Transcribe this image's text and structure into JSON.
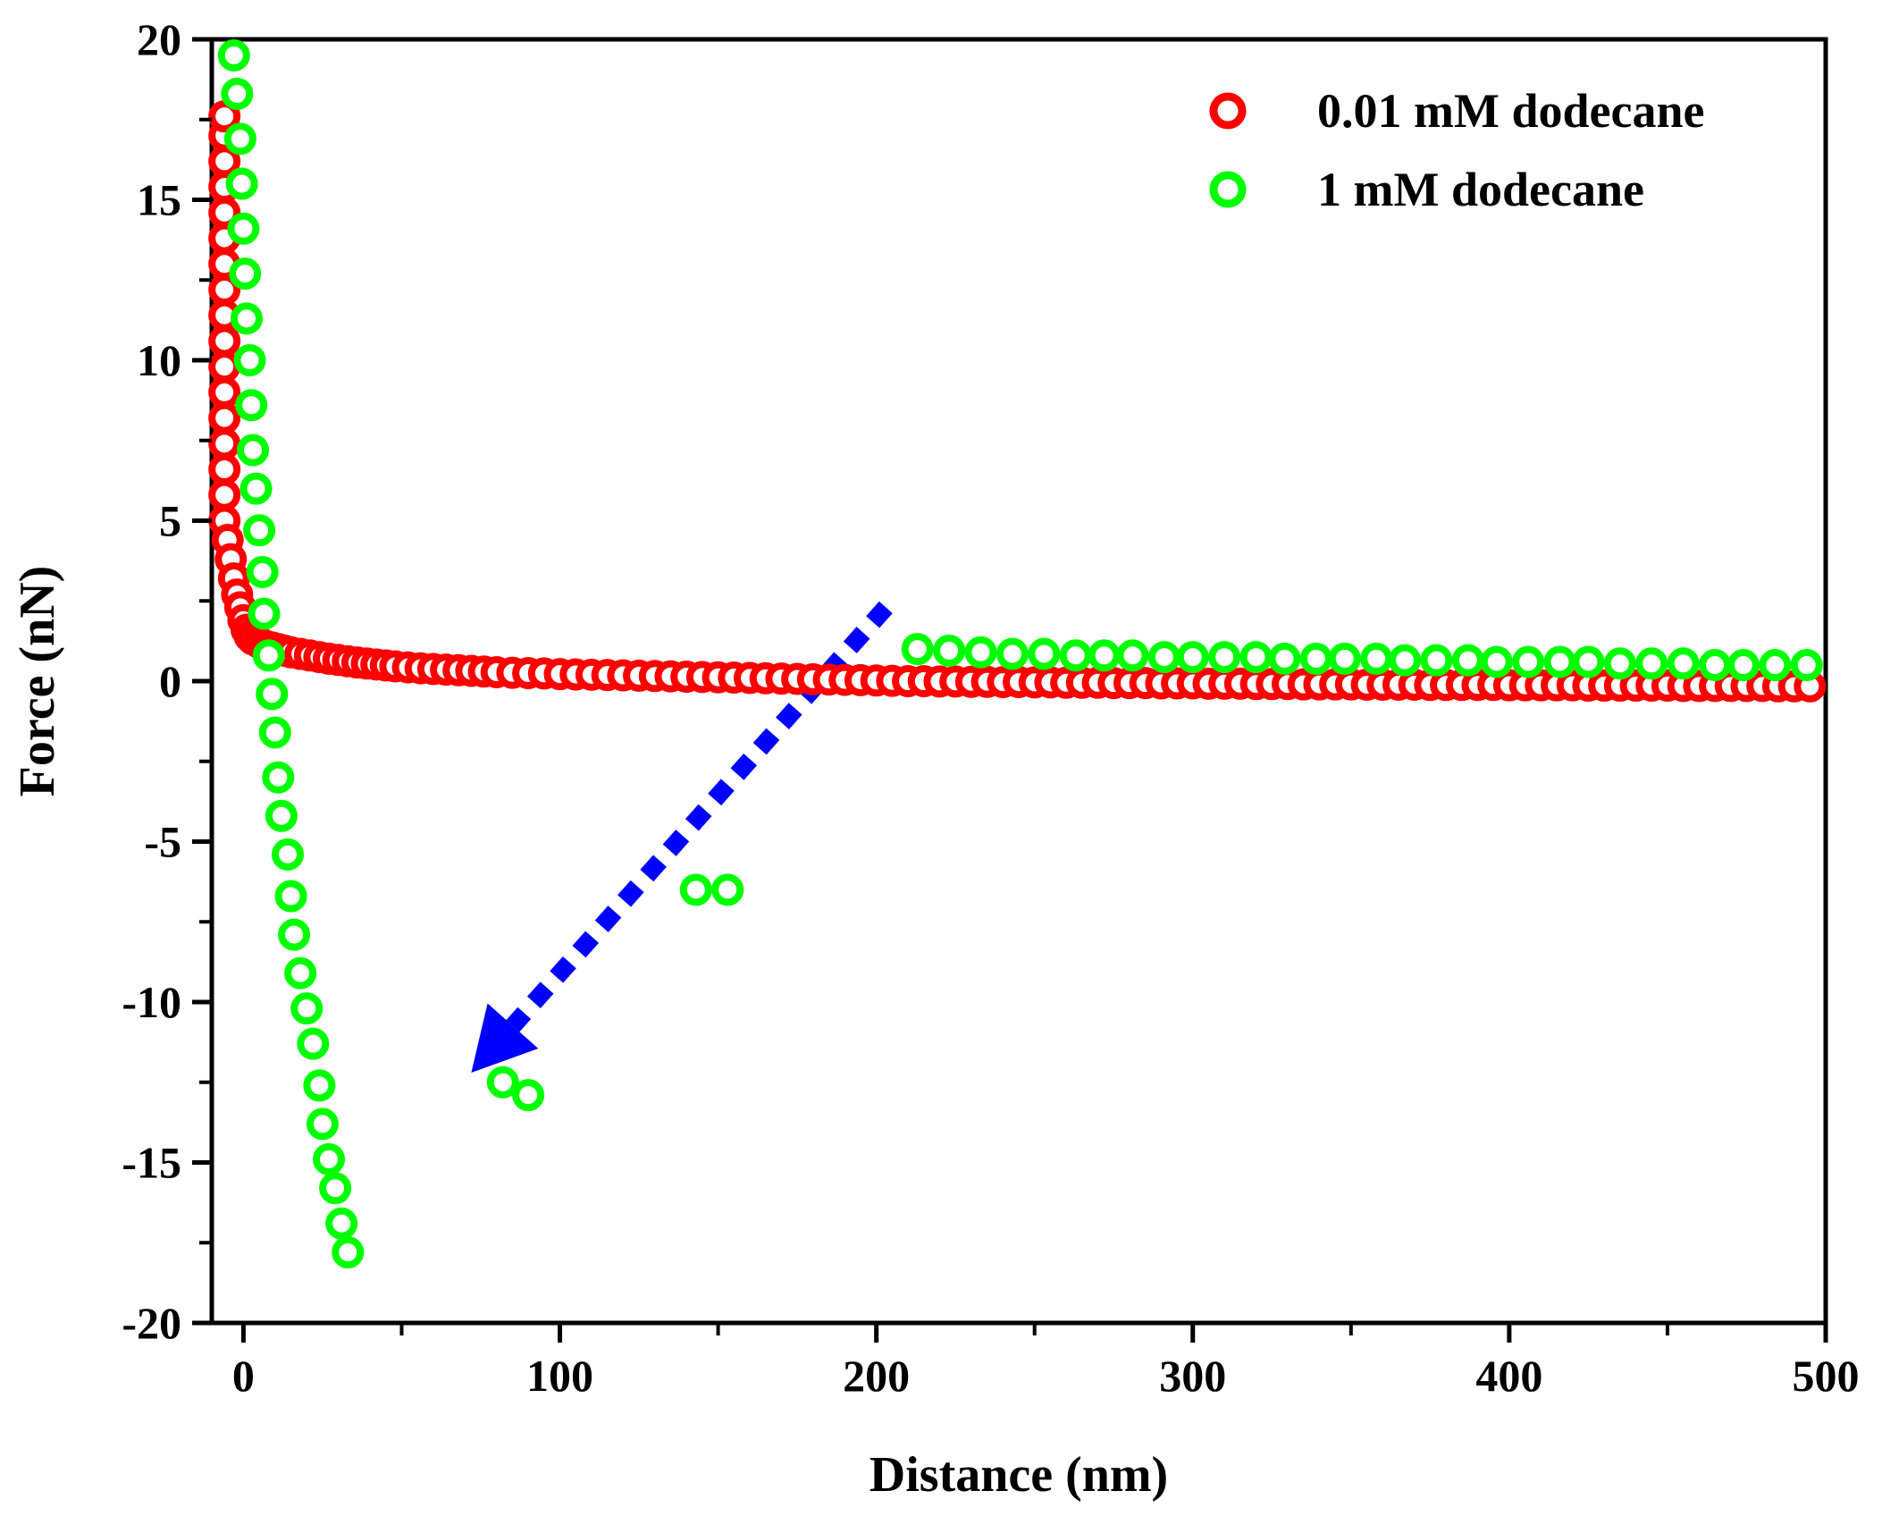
{
  "chart_data": {
    "type": "scatter",
    "xlabel": "Distance (nm)",
    "ylabel": "Force (nN)",
    "xlim": [
      -10,
      500
    ],
    "ylim": [
      -20,
      20
    ],
    "x_ticks": [
      0,
      100,
      200,
      300,
      400,
      500
    ],
    "x_tick_labels": [
      "0",
      "100",
      "200",
      "300",
      "400",
      "500"
    ],
    "y_ticks": [
      -20,
      -15,
      -10,
      -5,
      0,
      5,
      10,
      15,
      20
    ],
    "y_tick_labels": [
      "-20",
      "-15",
      "-10",
      "-5",
      "0",
      "5",
      "10",
      "15",
      "20"
    ],
    "grid": false,
    "legend_position": "top-right",
    "series": [
      {
        "name": "0.01 mM dodecane",
        "color": "#ff0000",
        "marker": "open-circle",
        "points": [
          [
            -6,
            5.0
          ],
          [
            -6,
            5.8
          ],
          [
            -6,
            6.6
          ],
          [
            -6,
            7.4
          ],
          [
            -6,
            8.2
          ],
          [
            -6,
            9.0
          ],
          [
            -6,
            9.8
          ],
          [
            -6,
            10.6
          ],
          [
            -6,
            11.4
          ],
          [
            -6,
            12.2
          ],
          [
            -6,
            13.0
          ],
          [
            -6,
            13.8
          ],
          [
            -6,
            14.6
          ],
          [
            -6,
            15.4
          ],
          [
            -6,
            16.2
          ],
          [
            -6,
            17.0
          ],
          [
            -6,
            17.6
          ],
          [
            -5,
            4.4
          ],
          [
            -4,
            3.8
          ],
          [
            -3,
            3.2
          ],
          [
            -2,
            2.7
          ],
          [
            -1,
            2.3
          ],
          [
            0,
            1.9
          ],
          [
            1,
            1.6
          ],
          [
            2,
            1.4
          ],
          [
            3,
            1.3
          ],
          [
            5,
            1.2
          ],
          [
            7,
            1.1
          ],
          [
            9,
            1.05
          ],
          [
            11,
            1.0
          ],
          [
            13,
            0.95
          ],
          [
            15,
            0.9
          ],
          [
            18,
            0.85
          ],
          [
            21,
            0.8
          ],
          [
            24,
            0.75
          ],
          [
            27,
            0.7
          ],
          [
            30,
            0.66
          ],
          [
            33,
            0.62
          ],
          [
            36,
            0.58
          ],
          [
            39,
            0.55
          ],
          [
            42,
            0.52
          ],
          [
            45,
            0.49
          ],
          [
            48,
            0.46
          ],
          [
            52,
            0.43
          ],
          [
            56,
            0.4
          ],
          [
            60,
            0.38
          ],
          [
            64,
            0.36
          ],
          [
            68,
            0.34
          ],
          [
            72,
            0.32
          ],
          [
            76,
            0.3
          ],
          [
            80,
            0.28
          ],
          [
            85,
            0.26
          ],
          [
            90,
            0.25
          ],
          [
            95,
            0.24
          ],
          [
            100,
            0.22
          ],
          [
            105,
            0.21
          ],
          [
            110,
            0.2
          ],
          [
            115,
            0.19
          ],
          [
            120,
            0.18
          ],
          [
            125,
            0.17
          ],
          [
            130,
            0.16
          ],
          [
            135,
            0.15
          ],
          [
            140,
            0.14
          ],
          [
            145,
            0.13
          ],
          [
            150,
            0.12
          ],
          [
            155,
            0.11
          ],
          [
            160,
            0.1
          ],
          [
            165,
            0.09
          ],
          [
            170,
            0.08
          ],
          [
            175,
            0.07
          ],
          [
            180,
            0.06
          ],
          [
            185,
            0.05
          ],
          [
            190,
            0.04
          ],
          [
            195,
            0.03
          ],
          [
            200,
            0.02
          ],
          [
            205,
            0.01
          ],
          [
            210,
            0.0
          ],
          [
            215,
            0.0
          ],
          [
            220,
            -0.01
          ],
          [
            225,
            -0.01
          ],
          [
            230,
            -0.02
          ],
          [
            235,
            -0.02
          ],
          [
            240,
            -0.03
          ],
          [
            245,
            -0.03
          ],
          [
            250,
            -0.04
          ],
          [
            255,
            -0.04
          ],
          [
            260,
            -0.05
          ],
          [
            265,
            -0.05
          ],
          [
            270,
            -0.05
          ],
          [
            275,
            -0.06
          ],
          [
            280,
            -0.06
          ],
          [
            285,
            -0.06
          ],
          [
            290,
            -0.07
          ],
          [
            295,
            -0.07
          ],
          [
            300,
            -0.07
          ],
          [
            305,
            -0.08
          ],
          [
            310,
            -0.08
          ],
          [
            315,
            -0.08
          ],
          [
            320,
            -0.09
          ],
          [
            325,
            -0.09
          ],
          [
            330,
            -0.09
          ],
          [
            335,
            -0.1
          ],
          [
            340,
            -0.1
          ],
          [
            345,
            -0.1
          ],
          [
            350,
            -0.1
          ],
          [
            355,
            -0.11
          ],
          [
            360,
            -0.11
          ],
          [
            365,
            -0.11
          ],
          [
            370,
            -0.11
          ],
          [
            375,
            -0.12
          ],
          [
            380,
            -0.12
          ],
          [
            385,
            -0.12
          ],
          [
            390,
            -0.12
          ],
          [
            395,
            -0.12
          ],
          [
            400,
            -0.13
          ],
          [
            405,
            -0.13
          ],
          [
            410,
            -0.13
          ],
          [
            415,
            -0.13
          ],
          [
            420,
            -0.13
          ],
          [
            425,
            -0.14
          ],
          [
            430,
            -0.14
          ],
          [
            435,
            -0.14
          ],
          [
            440,
            -0.14
          ],
          [
            445,
            -0.14
          ],
          [
            450,
            -0.14
          ],
          [
            455,
            -0.15
          ],
          [
            460,
            -0.15
          ],
          [
            465,
            -0.15
          ],
          [
            470,
            -0.15
          ],
          [
            475,
            -0.15
          ],
          [
            480,
            -0.15
          ],
          [
            485,
            -0.16
          ],
          [
            490,
            -0.16
          ],
          [
            495,
            -0.16
          ]
        ]
      },
      {
        "name": "1 mM dodecane",
        "color": "#00ff00",
        "marker": "open-circle",
        "points": [
          [
            -3,
            19.5
          ],
          [
            -2,
            18.3
          ],
          [
            -1,
            16.9
          ],
          [
            -0.5,
            15.5
          ],
          [
            0,
            14.1
          ],
          [
            0.5,
            12.7
          ],
          [
            1,
            11.3
          ],
          [
            2,
            10.0
          ],
          [
            2.5,
            8.6
          ],
          [
            3,
            7.2
          ],
          [
            4,
            6.0
          ],
          [
            5,
            4.7
          ],
          [
            6,
            3.4
          ],
          [
            6.5,
            2.1
          ],
          [
            8,
            0.8
          ],
          [
            9,
            -0.4
          ],
          [
            10,
            -1.6
          ],
          [
            11,
            -3.0
          ],
          [
            12,
            -4.2
          ],
          [
            14,
            -5.4
          ],
          [
            15,
            -6.7
          ],
          [
            16,
            -7.9
          ],
          [
            18,
            -9.1
          ],
          [
            20,
            -10.2
          ],
          [
            22,
            -11.3
          ],
          [
            24,
            -12.6
          ],
          [
            25,
            -13.8
          ],
          [
            27,
            -14.9
          ],
          [
            29,
            -15.8
          ],
          [
            31,
            -16.9
          ],
          [
            33,
            -17.8
          ],
          [
            82,
            -12.5
          ],
          [
            90,
            -12.9
          ],
          [
            143,
            -6.5
          ],
          [
            153,
            -6.5
          ],
          [
            213,
            1.0
          ],
          [
            223,
            0.95
          ],
          [
            233,
            0.9
          ],
          [
            243,
            0.85
          ],
          [
            253,
            0.85
          ],
          [
            263,
            0.8
          ],
          [
            272,
            0.8
          ],
          [
            281,
            0.8
          ],
          [
            291,
            0.75
          ],
          [
            300,
            0.75
          ],
          [
            310,
            0.75
          ],
          [
            320,
            0.75
          ],
          [
            329,
            0.7
          ],
          [
            339,
            0.7
          ],
          [
            348,
            0.7
          ],
          [
            358,
            0.7
          ],
          [
            367,
            0.65
          ],
          [
            377,
            0.65
          ],
          [
            387,
            0.65
          ],
          [
            396,
            0.6
          ],
          [
            406,
            0.6
          ],
          [
            416,
            0.6
          ],
          [
            425,
            0.6
          ],
          [
            435,
            0.55
          ],
          [
            445,
            0.55
          ],
          [
            455,
            0.55
          ],
          [
            465,
            0.5
          ],
          [
            474,
            0.5
          ],
          [
            484,
            0.5
          ],
          [
            494,
            0.5
          ]
        ]
      }
    ],
    "annotations": [
      {
        "type": "dashed-arrow",
        "color": "#0000ff",
        "from": [
          203,
          2.3
        ],
        "to": [
          72,
          -12.2
        ]
      }
    ]
  }
}
